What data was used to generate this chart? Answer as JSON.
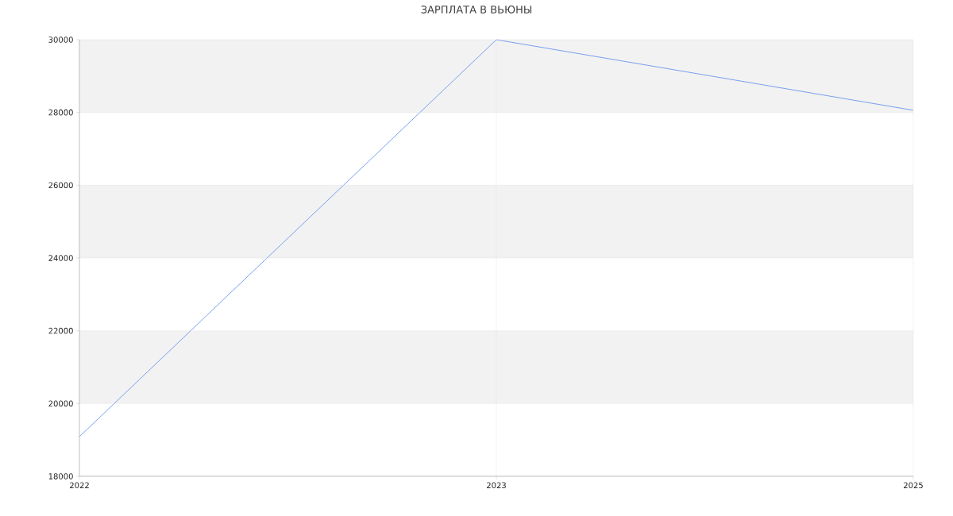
{
  "chart_data": {
    "type": "line",
    "title": "ЗАРПЛАТА В  ВЬЮНЫ",
    "categories": [
      "2022",
      "2023",
      "2025"
    ],
    "series": [
      {
        "color": "#6a95ef",
        "values": [
          19090,
          30000,
          28060
        ]
      }
    ],
    "ylim": [
      18000,
      30000
    ],
    "yticks": [
      18000,
      20000,
      22000,
      24000,
      26000,
      28000,
      30000
    ],
    "grid": true,
    "marker": "none",
    "line_style": "solid",
    "bands": [
      {
        "axis": "y",
        "from": 20000,
        "to": 22000,
        "color": "#f2f2f2"
      },
      {
        "axis": "y",
        "from": 24000,
        "to": 26000,
        "color": "#f2f2f2"
      },
      {
        "axis": "y",
        "from": 28000,
        "to": 30000,
        "color": "#f2f2f2"
      }
    ]
  }
}
